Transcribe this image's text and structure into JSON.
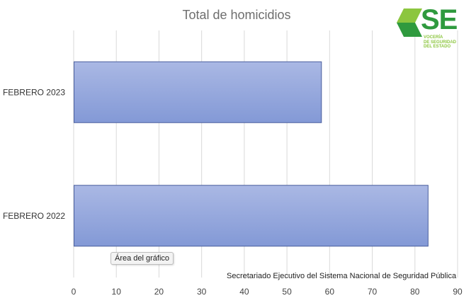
{
  "chart_data": {
    "type": "bar",
    "orientation": "horizontal",
    "title": "Total de homicidios",
    "categories": [
      "FEBRERO 2023",
      "FEBRERO 2022"
    ],
    "values": [
      58,
      83
    ],
    "xlim": [
      0,
      90
    ],
    "xticks": [
      "0",
      "10",
      "20",
      "30",
      "40",
      "50",
      "60",
      "70",
      "80",
      "90"
    ],
    "grid": true,
    "bar_color": "#96a9dc",
    "bar_edge_color": "#4a5f9e"
  },
  "source_note": "Secretariado Ejecutivo del Sistema Nacional de Seguridad Pública",
  "tooltip": "Área del gráfico",
  "logo": {
    "text": "SE",
    "subtext": "VOCERÍA\nDE SEGURIDAD\nDEL ESTADO",
    "color_dark": "#2f9a3e",
    "color_light": "#8cc63f"
  }
}
